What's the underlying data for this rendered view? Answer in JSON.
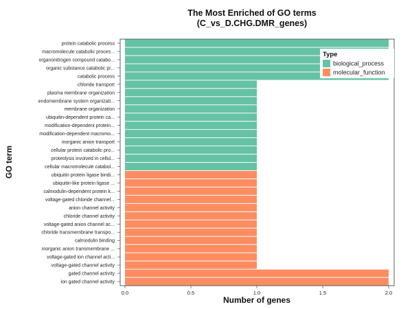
{
  "chart_data": {
    "type": "bar",
    "orientation": "horizontal",
    "title": "The Most Enriched of GO terms",
    "subtitle": "(C_vs_D.CHG.DMR_genes)",
    "xlabel": "Number of genes",
    "ylabel": "GO term",
    "xlim": [
      0,
      2
    ],
    "xticks": [
      "0.0",
      "0.5",
      "1.0",
      "1.5",
      "2.0"
    ],
    "grid": false,
    "legend": {
      "title": "Type",
      "position": "top-right",
      "entries": [
        {
          "label": "biological_process",
          "color": "#66c2a5"
        },
        {
          "label": "molecular_function",
          "color": "#fc8d62"
        }
      ]
    },
    "categories": [
      "protein catabolic process",
      "macromolecule catabolic proces...",
      "organonitrogen compound catabo...",
      "organic substance catabolic pr...",
      "catabolic process",
      "chloride transport",
      "plasma membrane organization",
      "endomembrane system organizati...",
      "membrane organization",
      "ubiquitin-dependent protein ca...",
      "modification-dependent protein...",
      "modification-dependent macromo...",
      "inorganic anion transport",
      "cellular protein catabolic pro...",
      "proteolysis involved in cellul...",
      "cellular macromolecule catabol...",
      "ubiquitin protein ligase bindi...",
      "ubiquitin-like protein ligase ...",
      "calmodulin-dependent protein k...",
      "voltage-gated chloride channel...",
      "anion channel activity",
      "chloride channel activity",
      "voltage-gated anion channel ac...",
      "chloride transmembrane transpo...",
      "calmodulin binding",
      "inorganic anion transmembrane ...",
      "voltage-gated ion channel acti...",
      "voltage-gated channel activity",
      "gated channel activity",
      "ion gated channel activity"
    ],
    "values": [
      2,
      2,
      2,
      2,
      2,
      1,
      1,
      1,
      1,
      1,
      1,
      1,
      1,
      1,
      1,
      1,
      1,
      1,
      1,
      1,
      1,
      1,
      1,
      1,
      1,
      1,
      1,
      1,
      2,
      2
    ],
    "types": [
      "biological_process",
      "biological_process",
      "biological_process",
      "biological_process",
      "biological_process",
      "biological_process",
      "biological_process",
      "biological_process",
      "biological_process",
      "biological_process",
      "biological_process",
      "biological_process",
      "biological_process",
      "biological_process",
      "biological_process",
      "biological_process",
      "molecular_function",
      "molecular_function",
      "molecular_function",
      "molecular_function",
      "molecular_function",
      "molecular_function",
      "molecular_function",
      "molecular_function",
      "molecular_function",
      "molecular_function",
      "molecular_function",
      "molecular_function",
      "molecular_function",
      "molecular_function"
    ]
  }
}
